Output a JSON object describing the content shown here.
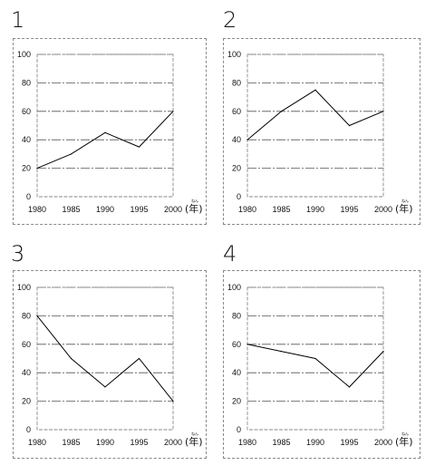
{
  "panels": [
    {
      "number": "1"
    },
    {
      "number": "2"
    },
    {
      "number": "3"
    },
    {
      "number": "4"
    }
  ],
  "unit_label": "(年)",
  "unit_ruby": "ねん",
  "colors": {
    "line": "#000000",
    "grid": "#555555",
    "frame": "#8a8a8a"
  },
  "chart_data": [
    {
      "type": "line",
      "title": "1",
      "x": [
        1980,
        1985,
        1990,
        1995,
        2000
      ],
      "values": [
        20,
        30,
        45,
        35,
        60
      ],
      "xticks": [
        "1980",
        "1985",
        "1990",
        "1995",
        "2000"
      ],
      "yticks": [
        "0",
        "20",
        "40",
        "60",
        "80",
        "100"
      ],
      "ylim": [
        0,
        100
      ],
      "grid": true
    },
    {
      "type": "line",
      "title": "2",
      "x": [
        1980,
        1985,
        1990,
        1995,
        2000
      ],
      "values": [
        40,
        60,
        75,
        50,
        60
      ],
      "xticks": [
        "1980",
        "1985",
        "1990",
        "1995",
        "2000"
      ],
      "yticks": [
        "0",
        "20",
        "40",
        "60",
        "80",
        "100"
      ],
      "ylim": [
        0,
        100
      ],
      "grid": true
    },
    {
      "type": "line",
      "title": "3",
      "x": [
        1980,
        1985,
        1990,
        1995,
        2000
      ],
      "values": [
        80,
        50,
        30,
        50,
        20
      ],
      "xticks": [
        "1980",
        "1985",
        "1990",
        "1995",
        "2000"
      ],
      "yticks": [
        "0",
        "20",
        "40",
        "60",
        "80",
        "100"
      ],
      "ylim": [
        0,
        100
      ],
      "grid": true
    },
    {
      "type": "line",
      "title": "4",
      "x": [
        1980,
        1985,
        1990,
        1995,
        2000
      ],
      "values": [
        60,
        55,
        50,
        30,
        55
      ],
      "xticks": [
        "1980",
        "1985",
        "1990",
        "1995",
        "2000"
      ],
      "yticks": [
        "0",
        "20",
        "40",
        "60",
        "80",
        "100"
      ],
      "ylim": [
        0,
        100
      ],
      "grid": true
    }
  ]
}
